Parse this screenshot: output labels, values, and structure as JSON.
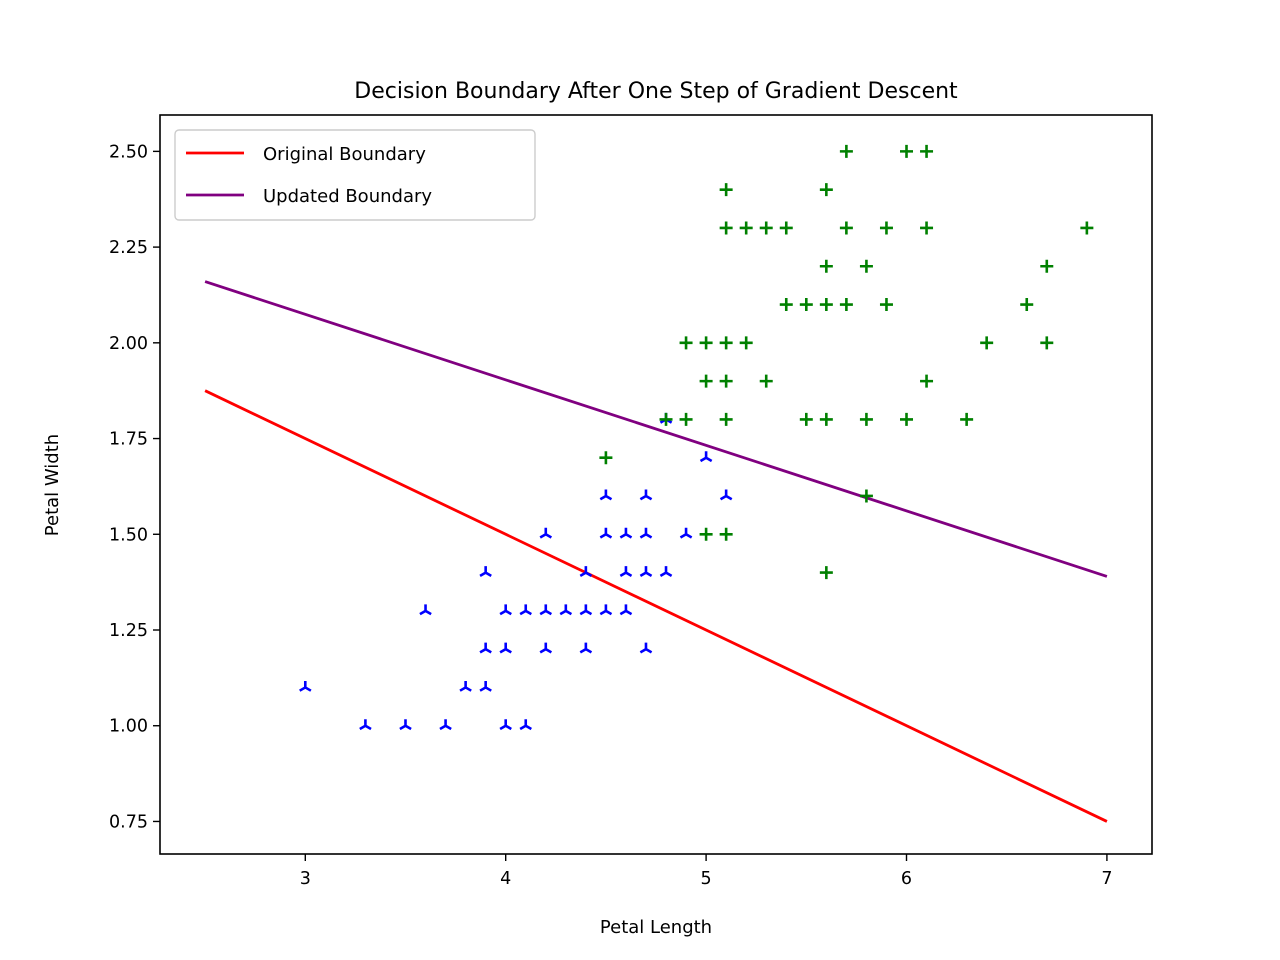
{
  "chart_data": {
    "type": "scatter",
    "title": "Decision Boundary After One Step of Gradient Descent",
    "xlabel": "Petal Length",
    "ylabel": "Petal Width",
    "xlim": [
      2.275,
      7.225
    ],
    "ylim": [
      0.665,
      2.595
    ],
    "xticks": [
      3,
      4,
      5,
      6,
      7
    ],
    "xtick_labels": [
      "3",
      "4",
      "5",
      "6",
      "7"
    ],
    "yticks": [
      0.75,
      1.0,
      1.25,
      1.5,
      1.75,
      2.0,
      2.25,
      2.5
    ],
    "ytick_labels": [
      "0.75",
      "1.00",
      "1.25",
      "1.50",
      "1.75",
      "2.00",
      "2.25",
      "2.50"
    ],
    "grid": false,
    "legend_position": "upper-left",
    "colors": {
      "class_a": "#0000ff",
      "class_b": "#008000"
    },
    "lines": [
      {
        "name": "Original Boundary",
        "color": "#ff0000",
        "x": [
          2.5,
          7.0
        ],
        "y": [
          1.875,
          0.75
        ]
      },
      {
        "name": "Updated Boundary",
        "color": "#800080",
        "x": [
          2.5,
          7.0
        ],
        "y": [
          2.16,
          1.39
        ]
      }
    ],
    "scatter": [
      {
        "marker": "tri_down",
        "color": "#0000ff",
        "points": [
          [
            3.0,
            1.1
          ],
          [
            3.3,
            1.0
          ],
          [
            3.5,
            1.0
          ],
          [
            3.6,
            1.3
          ],
          [
            3.7,
            1.0
          ],
          [
            3.8,
            1.1
          ],
          [
            3.9,
            1.1
          ],
          [
            3.9,
            1.2
          ],
          [
            3.9,
            1.4
          ],
          [
            4.0,
            1.0
          ],
          [
            4.0,
            1.2
          ],
          [
            4.0,
            1.3
          ],
          [
            4.1,
            1.0
          ],
          [
            4.1,
            1.3
          ],
          [
            4.2,
            1.2
          ],
          [
            4.2,
            1.3
          ],
          [
            4.2,
            1.5
          ],
          [
            4.3,
            1.3
          ],
          [
            4.4,
            1.2
          ],
          [
            4.4,
            1.3
          ],
          [
            4.4,
            1.4
          ],
          [
            4.5,
            1.3
          ],
          [
            4.5,
            1.5
          ],
          [
            4.5,
            1.6
          ],
          [
            4.6,
            1.3
          ],
          [
            4.6,
            1.4
          ],
          [
            4.6,
            1.5
          ],
          [
            4.7,
            1.2
          ],
          [
            4.7,
            1.4
          ],
          [
            4.7,
            1.5
          ],
          [
            4.7,
            1.6
          ],
          [
            4.8,
            1.4
          ],
          [
            4.8,
            1.8
          ],
          [
            4.9,
            1.5
          ],
          [
            5.0,
            1.7
          ],
          [
            5.1,
            1.6
          ]
        ]
      },
      {
        "marker": "plus",
        "color": "#008000",
        "points": [
          [
            4.5,
            1.7
          ],
          [
            4.8,
            1.8
          ],
          [
            4.9,
            1.8
          ],
          [
            4.9,
            2.0
          ],
          [
            5.0,
            1.5
          ],
          [
            5.0,
            1.9
          ],
          [
            5.0,
            2.0
          ],
          [
            5.1,
            1.5
          ],
          [
            5.1,
            1.8
          ],
          [
            5.1,
            1.9
          ],
          [
            5.1,
            2.0
          ],
          [
            5.1,
            2.3
          ],
          [
            5.1,
            2.4
          ],
          [
            5.2,
            2.0
          ],
          [
            5.2,
            2.3
          ],
          [
            5.3,
            1.9
          ],
          [
            5.3,
            2.3
          ],
          [
            5.4,
            2.1
          ],
          [
            5.4,
            2.3
          ],
          [
            5.5,
            1.8
          ],
          [
            5.5,
            2.1
          ],
          [
            5.6,
            1.4
          ],
          [
            5.6,
            1.8
          ],
          [
            5.6,
            2.1
          ],
          [
            5.6,
            2.2
          ],
          [
            5.6,
            2.4
          ],
          [
            5.7,
            2.1
          ],
          [
            5.7,
            2.3
          ],
          [
            5.7,
            2.5
          ],
          [
            5.8,
            1.6
          ],
          [
            5.8,
            1.8
          ],
          [
            5.8,
            2.2
          ],
          [
            5.9,
            2.1
          ],
          [
            5.9,
            2.3
          ],
          [
            6.0,
            1.8
          ],
          [
            6.0,
            2.5
          ],
          [
            6.1,
            1.9
          ],
          [
            6.1,
            2.3
          ],
          [
            6.1,
            2.5
          ],
          [
            6.3,
            1.8
          ],
          [
            6.4,
            2.0
          ],
          [
            6.6,
            2.1
          ],
          [
            6.7,
            2.0
          ],
          [
            6.7,
            2.2
          ],
          [
            6.9,
            2.3
          ]
        ]
      }
    ]
  }
}
